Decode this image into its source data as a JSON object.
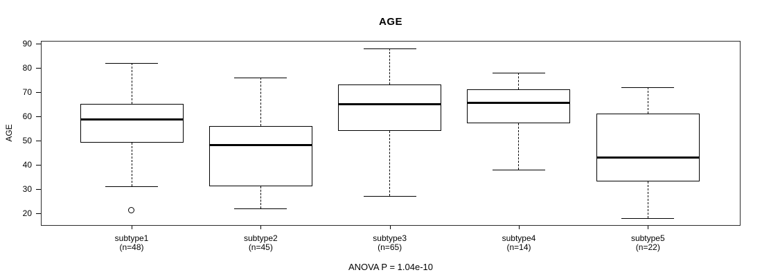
{
  "figure": {
    "background": "#ffffff",
    "line_color": "#000000"
  },
  "chart_data": {
    "type": "boxplot",
    "title": "AGE",
    "ylabel": "AGE",
    "xlabel": "",
    "caption": "ANOVA P = 1.04e-10",
    "ylim": [
      14.8,
      91
    ],
    "yticks": [
      20,
      30,
      40,
      50,
      60,
      70,
      80,
      90
    ],
    "grid": false,
    "legend": "none",
    "groups": [
      {
        "label": "subtype1",
        "sublabel": "(n=48)",
        "whisker_low": 31,
        "q1": 49,
        "median": 58.5,
        "q3": 65,
        "whisker_high": 82,
        "outliers": [
          21
        ]
      },
      {
        "label": "subtype2",
        "sublabel": "(n=45)",
        "whisker_low": 22,
        "q1": 31,
        "median": 48,
        "q3": 56,
        "whisker_high": 76,
        "outliers": []
      },
      {
        "label": "subtype3",
        "sublabel": "(n=65)",
        "whisker_low": 27,
        "q1": 54,
        "median": 65,
        "q3": 73,
        "whisker_high": 88,
        "outliers": []
      },
      {
        "label": "subtype4",
        "sublabel": "(n=14)",
        "whisker_low": 38,
        "q1": 57,
        "median": 65.5,
        "q3": 71,
        "whisker_high": 78,
        "outliers": []
      },
      {
        "label": "subtype5",
        "sublabel": "(n=22)",
        "whisker_low": 18,
        "q1": 33,
        "median": 43,
        "q3": 61,
        "whisker_high": 72,
        "outliers": []
      }
    ]
  }
}
